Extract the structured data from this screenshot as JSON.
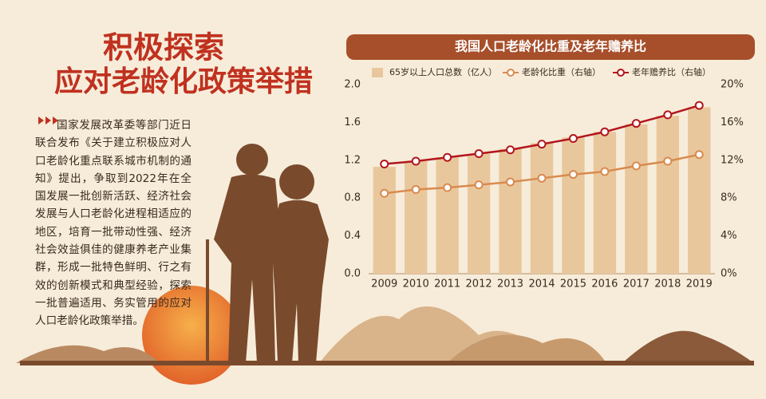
{
  "header": {
    "title_line1": "积极探索",
    "title_line2": "应对老龄化政策举措"
  },
  "body_text": "国家发展改革委等部门近日联合发布《关于建立积极应对人口老龄化重点联系城市机制的通知》提出，争取到2022年在全国发展一批创新活跃、经济社会发展与人口老龄化进程相适应的地区，培育一批带动性强、经济社会效益俱佳的健康养老产业集群，形成一批特色鲜明、行之有效的创新模式和典型经验，探索一批普遍适用、务实管用的应对人口老龄化政策举措。",
  "chart_data": {
    "type": "combo",
    "title": "我国人口老龄化比重及老年赡养比",
    "categories": [
      "2009",
      "2010",
      "2011",
      "2012",
      "2013",
      "2014",
      "2015",
      "2016",
      "2017",
      "2018",
      "2019"
    ],
    "series": [
      {
        "name": "65岁以上人口总数（亿人）",
        "type": "bar",
        "color": "#e9c79d",
        "values": [
          1.13,
          1.19,
          1.23,
          1.27,
          1.32,
          1.38,
          1.44,
          1.5,
          1.58,
          1.67,
          1.76
        ]
      },
      {
        "name": "老龄化比重（右轴）",
        "type": "line",
        "axis": "y2",
        "color": "#d98a4e",
        "values": [
          8.5,
          8.9,
          9.1,
          9.4,
          9.7,
          10.1,
          10.5,
          10.8,
          11.4,
          11.9,
          12.6
        ]
      },
      {
        "name": "老年赡养比（右轴）",
        "type": "line",
        "axis": "y2",
        "color": "#b3161d",
        "values": [
          11.6,
          11.9,
          12.3,
          12.7,
          13.1,
          13.7,
          14.3,
          15.0,
          15.9,
          16.8,
          17.8
        ]
      }
    ],
    "ylim": [
      0,
      2
    ],
    "yticks": [
      {
        "value": 0,
        "label": "0.0"
      },
      0.4,
      0.8,
      1.2,
      1.6,
      {
        "value": 2,
        "label": "2.0"
      }
    ],
    "y2lim": [
      0,
      20
    ],
    "y2ticks": [
      {
        "value": 0,
        "label": "0%"
      },
      {
        "value": 4,
        "label": "4%"
      },
      {
        "value": 8,
        "label": "8%"
      },
      {
        "value": 12,
        "label": "12%"
      },
      {
        "value": 16,
        "label": "16%"
      },
      {
        "value": 20,
        "label": "20%"
      }
    ],
    "grid": false,
    "legend": "top"
  }
}
